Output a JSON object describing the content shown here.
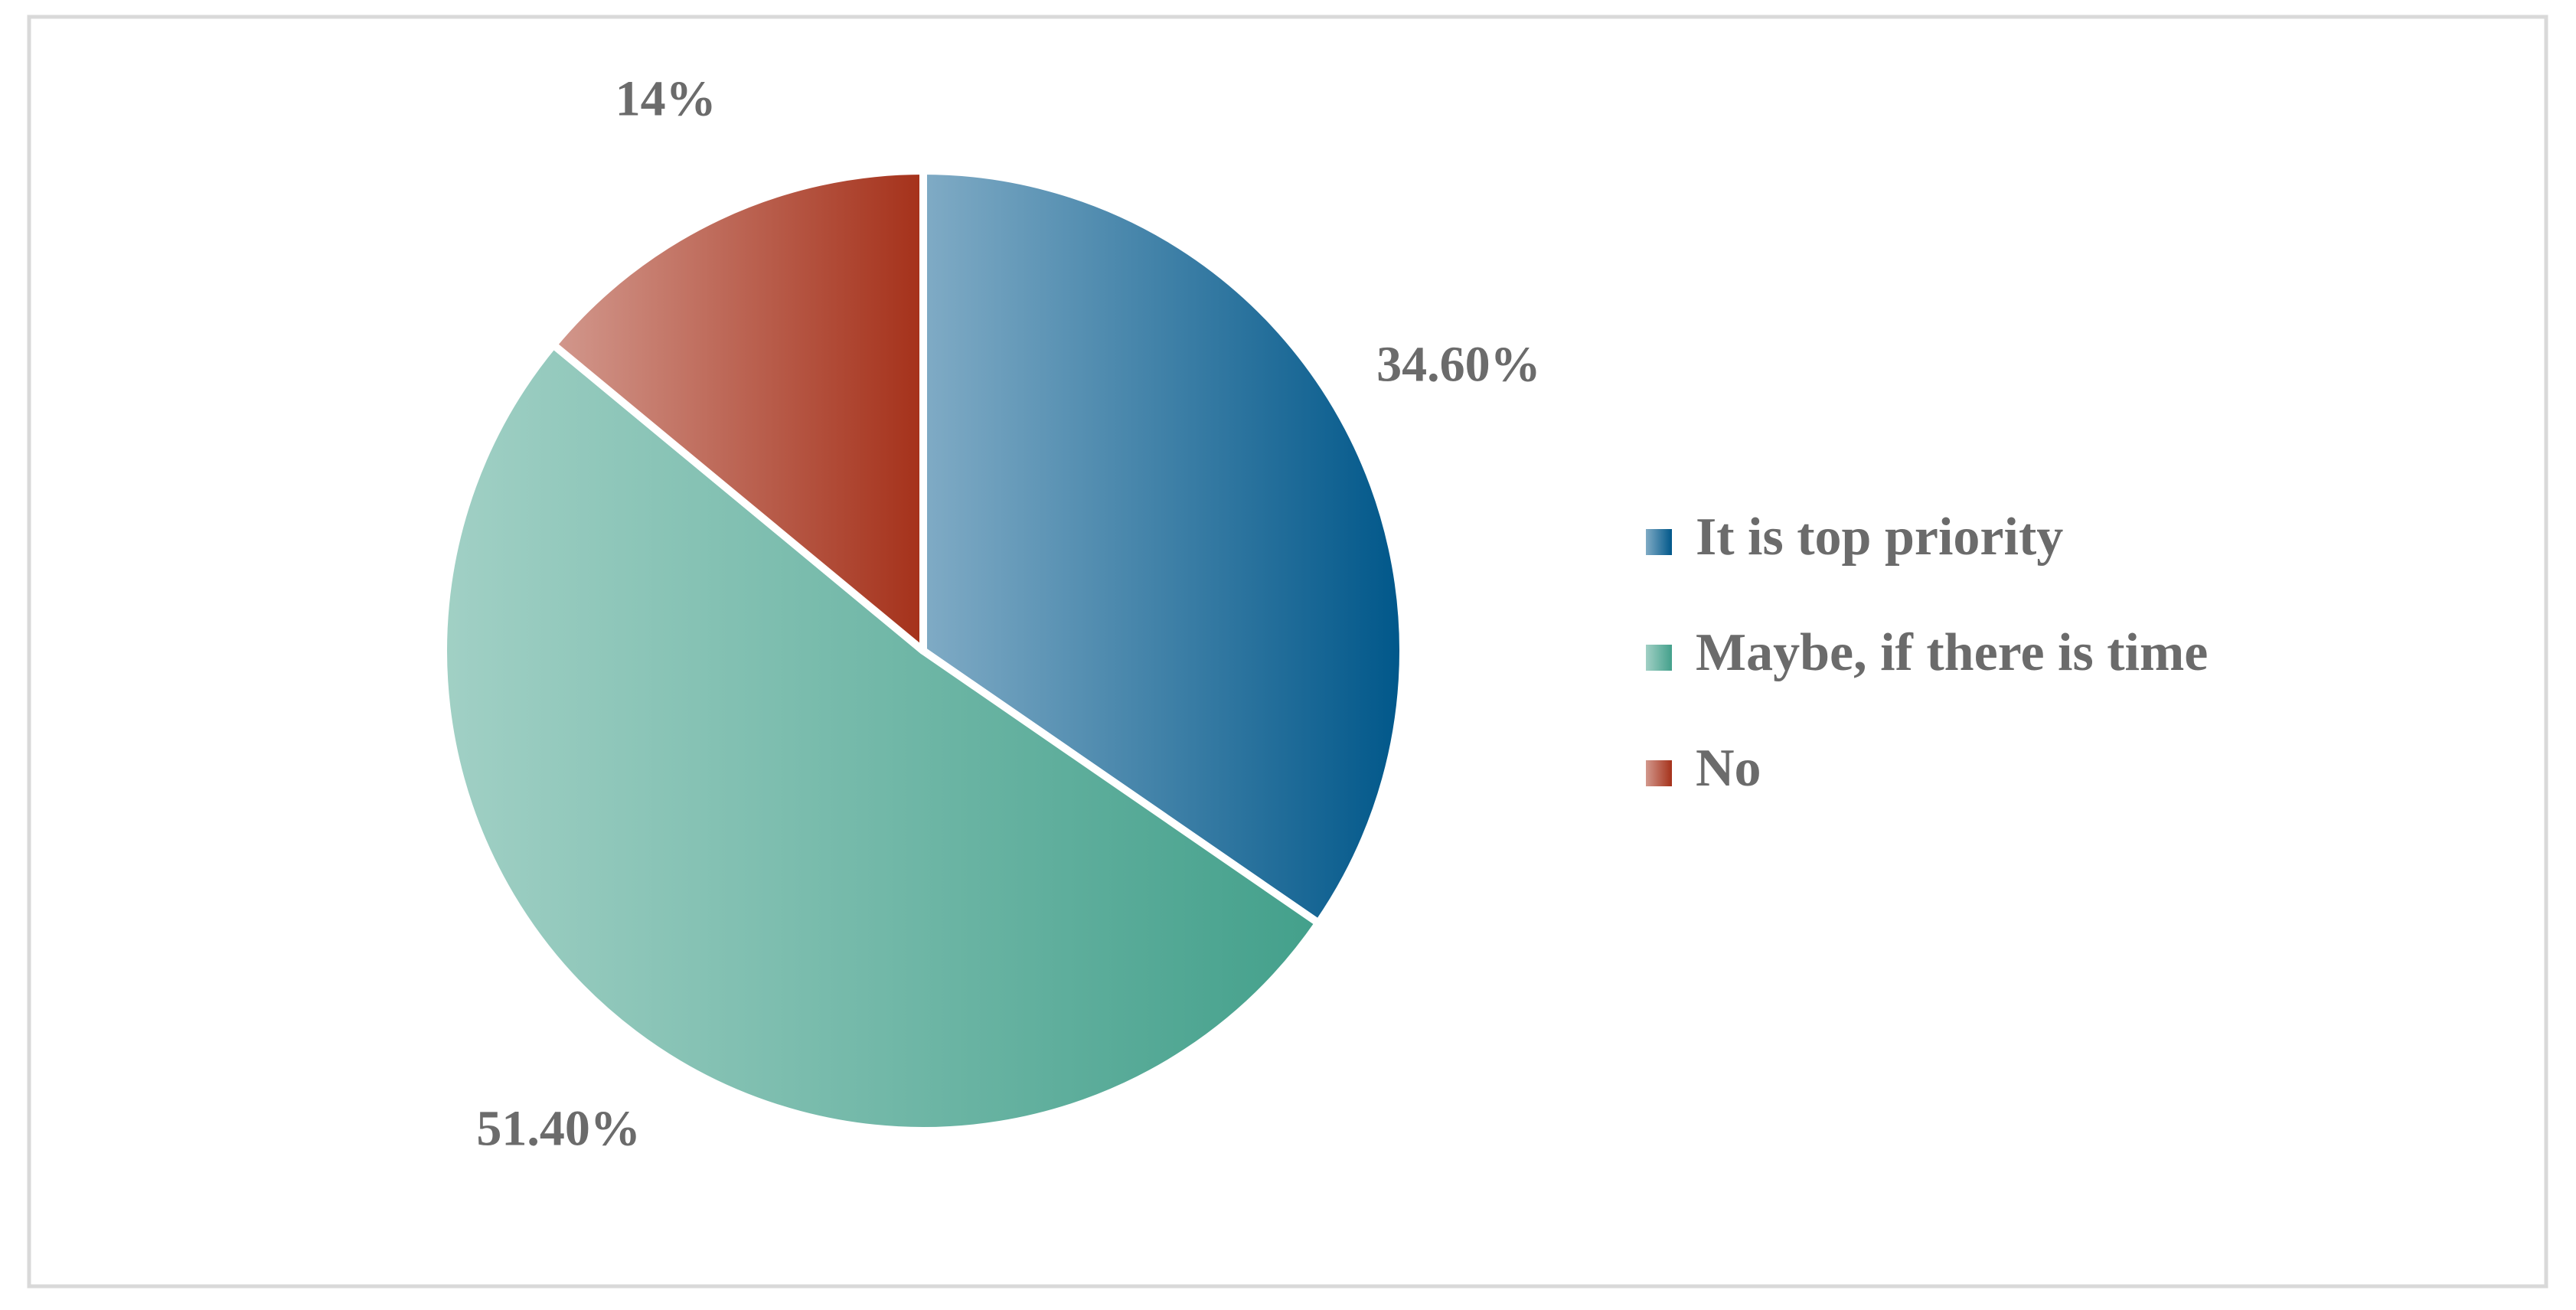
{
  "chart_data": {
    "type": "pie",
    "categories": [
      "It is top priority",
      "Maybe, if there is time",
      "No"
    ],
    "values": [
      34.6,
      51.4,
      14
    ],
    "value_labels": [
      "34.60%",
      "51.40%",
      "14%"
    ],
    "colors": [
      "#00578a",
      "#43a08b",
      "#a5311a"
    ],
    "legend": "right"
  }
}
